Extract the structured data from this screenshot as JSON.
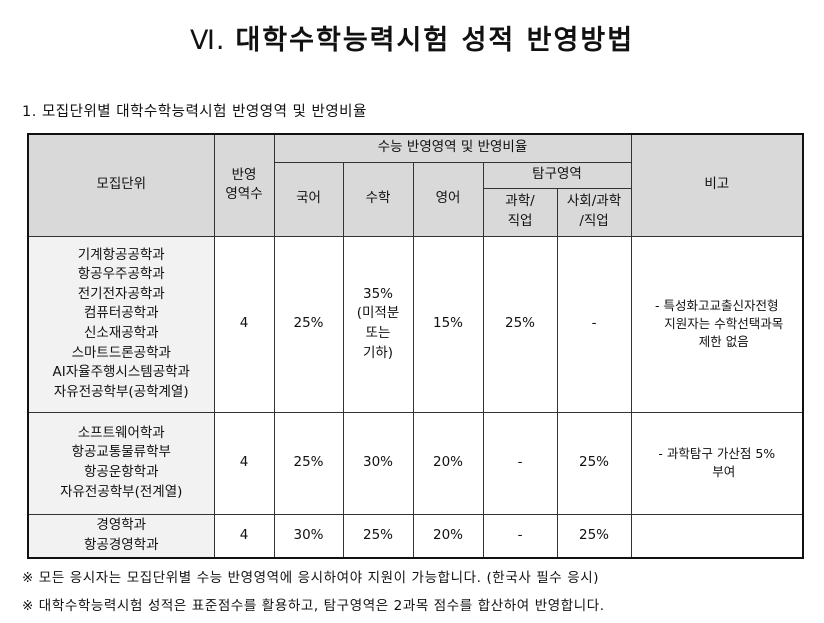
{
  "title": {
    "roman": "Ⅵ.",
    "text": "대학수학능력시험 성적 반영방법"
  },
  "subtitle": "1. 모집단위별 대학수학능력시험 반영영역 및 반영비율",
  "header": {
    "unit": "모집단위",
    "count_line1": "반영",
    "count_line2": "영역수",
    "group": "수능 반영영역 및 반영비율",
    "korean": "국어",
    "math": "수학",
    "english": "영어",
    "inquiry": "탐구영역",
    "sci_line1": "과학/",
    "sci_line2": "직업",
    "soc_line1": "사회/과학",
    "soc_line2": "/직업",
    "remark": "비고"
  },
  "rows": [
    {
      "units": [
        "기계항공공학과",
        "항공우주공학과",
        "전기전자공학과",
        "컴퓨터공학과",
        "신소재공학과",
        "스마트드론공학과",
        "AI자율주행시스템공학과",
        "자유전공학부(공학계열)"
      ],
      "count": "4",
      "korean": "25%",
      "math_lines": [
        "35%",
        "(미적분",
        "또는",
        "기하)"
      ],
      "english": "15%",
      "sci": "25%",
      "soc": "-",
      "remark_lines": [
        "- 특성화고교출신자전형",
        "지원자는 수학선택과목",
        "제한 없음"
      ]
    },
    {
      "units": [
        "소프트웨어학과",
        "항공교통물류학부",
        "항공운항학과",
        "자유전공학부(전계열)"
      ],
      "count": "4",
      "korean": "25%",
      "math_lines": [
        "30%"
      ],
      "english": "20%",
      "sci": "-",
      "soc": "25%",
      "remark_lines": [
        "- 과학탐구 가산점 5%",
        "부여"
      ]
    },
    {
      "units": [
        "경영학과",
        "항공경영학과"
      ],
      "count": "4",
      "korean": "30%",
      "math_lines": [
        "25%"
      ],
      "english": "20%",
      "sci": "-",
      "soc": "25%",
      "remark_lines": []
    }
  ],
  "notes": [
    "※ 모든 응시자는 모집단위별 수능 반영영역에 응시하여야 지원이 가능합니다. (한국사 필수 응시)",
    "※ 대학수학능력시험 성적은 표준점수를 활용하고, 탐구영역은 2과목 점수를 합산하여 반영합니다."
  ]
}
